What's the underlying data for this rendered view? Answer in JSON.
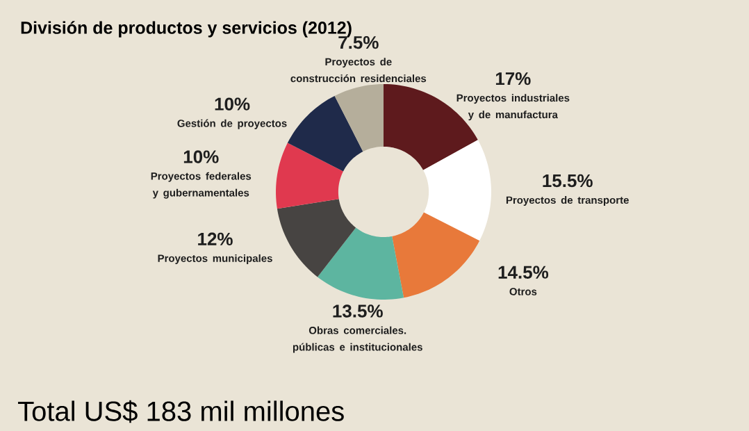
{
  "chart_data": {
    "type": "donut",
    "title": "División de productos y servicios (2012)",
    "categories": [
      "Proyectos industriales y de manufactura",
      "Proyectos de transporte",
      "Otros",
      "Obras comerciales. públicas e institucionales",
      "Proyectos municipales",
      "Proyectos federales y gubernamentales",
      "Gestión de proyectos",
      "Proyectos de construcción residenciales"
    ],
    "values": [
      17,
      15.5,
      14.5,
      13.5,
      12,
      10,
      10,
      7.5
    ],
    "value_labels": [
      "17%",
      "15.5%",
      "14.5%",
      "13.5%",
      "12%",
      "10%",
      "10%",
      "7.5%"
    ],
    "colors": [
      "#5e1a1d",
      "#ffffff",
      "#e8793a",
      "#5db5a0",
      "#474442",
      "#e0394f",
      "#1f2a4a",
      "#b5ae9b"
    ],
    "annotations": [
      "Total US$ 183 mil millones"
    ]
  }
}
